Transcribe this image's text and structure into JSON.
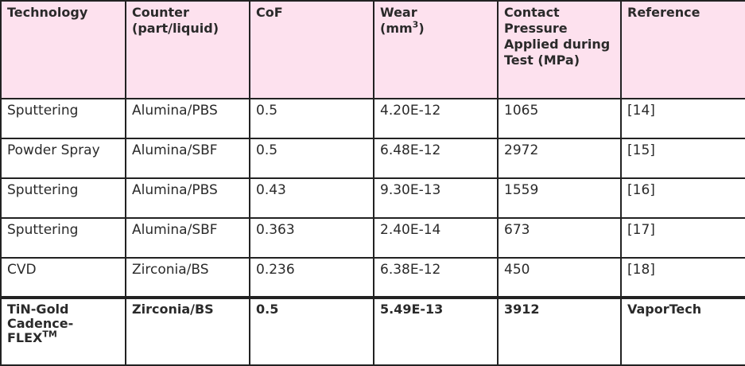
{
  "table": {
    "header": [
      "Technology",
      "Counter (part/liquid)",
      "CoF",
      {
        "lines": [
          "Wear",
          "(mm"
        ],
        "sup": "3",
        "tail": ")"
      },
      "Contact Pressure Applied during Test (MPa)",
      "Reference"
    ],
    "rows": [
      [
        "Sputtering",
        "Alumina/PBS",
        "0.5",
        "4.20E-12",
        "1065",
        "[14]"
      ],
      [
        "Powder Spray",
        "Alumina/SBF",
        "0.5",
        "6.48E-12",
        "2972",
        "[15]"
      ],
      [
        "Sputtering",
        "Alumina/PBS",
        "0.43",
        "9.30E-13",
        "1559",
        "[16]"
      ],
      [
        "Sputtering",
        "Alumina/SBF",
        "0.363",
        "2.40E-14",
        "673",
        "[17]"
      ],
      [
        "CVD",
        "Zirconia/BS",
        "0.236",
        "6.38E-12",
        "450",
        "[18]"
      ],
      [
        {
          "lines": [
            "TiN-Gold",
            "Cadence-",
            "FLEX"
          ],
          "sup": "TM"
        },
        "Zirconia/BS",
        "0.5",
        "5.49E-13",
        "3912",
        "VaporTech"
      ]
    ]
  }
}
